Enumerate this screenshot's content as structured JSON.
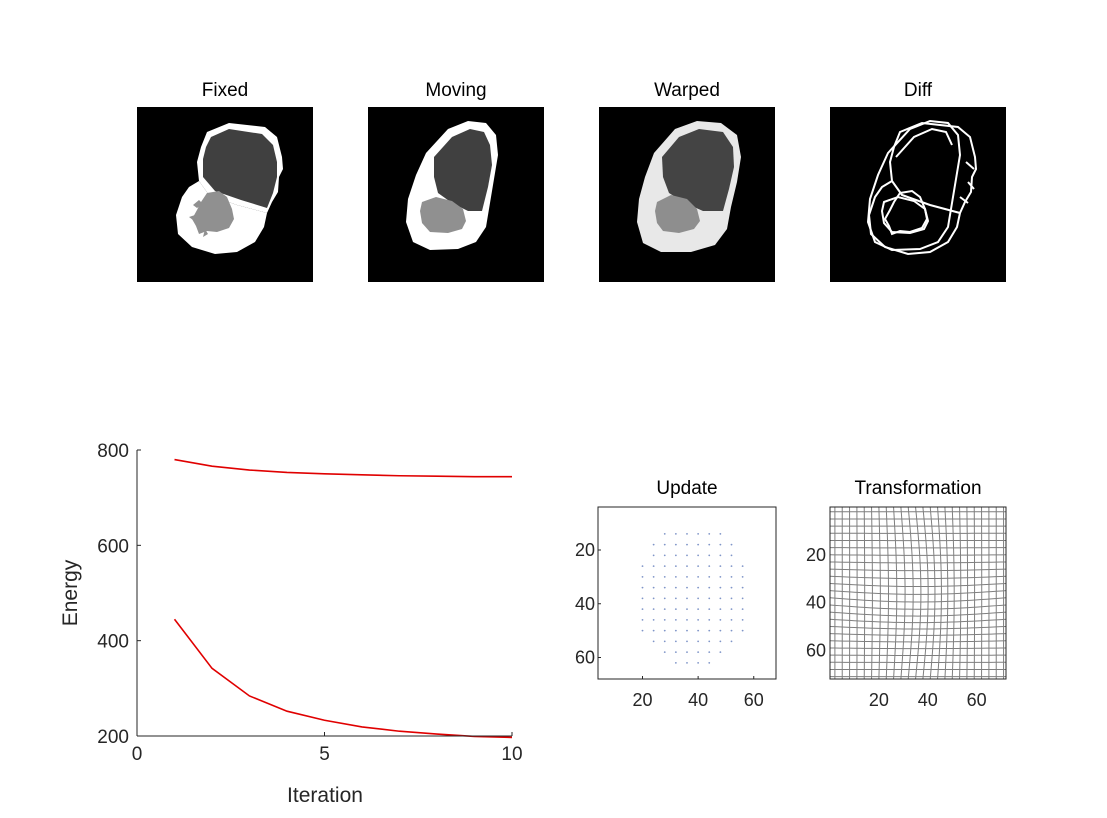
{
  "figure": {
    "colors": {
      "energy_line": "#e00000",
      "axis": "#262626",
      "grid": "#7f7f7f",
      "update_dots": "#7f95c8"
    }
  },
  "images": {
    "fixed": {
      "title": "Fixed"
    },
    "moving": {
      "title": "Moving"
    },
    "warped": {
      "title": "Warped"
    },
    "diff": {
      "title": "Diff"
    }
  },
  "chart_data": [
    {
      "type": "line",
      "title": "",
      "xlabel": "Iteration",
      "ylabel": "Energy",
      "xlim": [
        0,
        10
      ],
      "ylim": [
        200,
        800
      ],
      "xticks": [
        0,
        5,
        10
      ],
      "yticks": [
        200,
        400,
        600,
        800
      ],
      "series": [
        {
          "x": [
            1,
            2,
            3,
            4,
            5,
            6,
            7,
            8,
            9,
            10
          ],
          "values": [
            780,
            766,
            758,
            753,
            750,
            748,
            746,
            745,
            744,
            744
          ]
        },
        {
          "x": [
            1,
            2,
            3,
            4,
            5,
            6,
            7,
            8,
            9,
            10
          ],
          "values": [
            445,
            342,
            284,
            252,
            233,
            219,
            210,
            204,
            199,
            197
          ]
        }
      ]
    },
    {
      "type": "scatter",
      "title": "Update",
      "xlim": [
        4,
        68
      ],
      "ylim": [
        68,
        4
      ],
      "xticks": [
        20,
        40,
        60
      ],
      "yticks": [
        20,
        40,
        60
      ]
    },
    {
      "type": "other",
      "title": "Transformation",
      "xlim": [
        0,
        72
      ],
      "ylim": [
        72,
        0
      ],
      "xticks": [
        20,
        40,
        60
      ],
      "yticks": [
        20,
        40,
        60
      ]
    }
  ]
}
